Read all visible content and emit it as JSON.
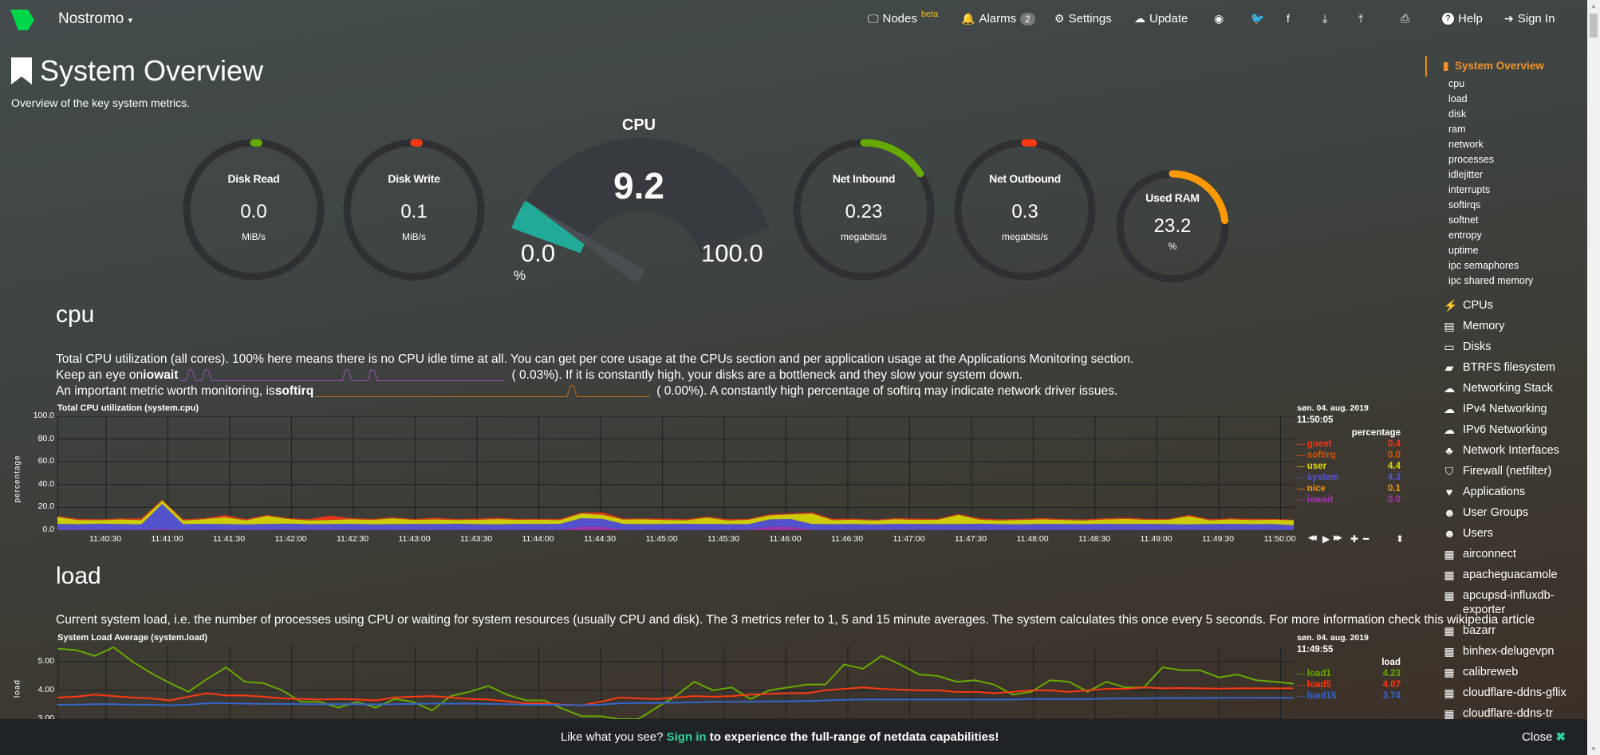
{
  "topbar": {
    "brand": "Nostromo",
    "nav": [
      {
        "icon": "monitor-icon",
        "label": "Nodes",
        "sup": "beta"
      },
      {
        "icon": "bell-icon",
        "label": "Alarms",
        "badge": "2"
      },
      {
        "icon": "gear-icon",
        "label": "Settings"
      },
      {
        "icon": "cloud-download-icon",
        "label": "Update"
      },
      {
        "icon": "github-icon"
      },
      {
        "icon": "twitter-icon"
      },
      {
        "icon": "facebook-icon"
      },
      {
        "icon": "download-icon"
      },
      {
        "icon": "upload-icon"
      },
      {
        "icon": "print-icon"
      },
      {
        "icon": "help-icon",
        "label": "Help"
      },
      {
        "icon": "sign-in-icon",
        "label": "Sign In"
      }
    ]
  },
  "page": {
    "title": "System Overview",
    "subtitle": "Overview of the key system metrics."
  },
  "gauges": [
    {
      "title": "Disk Read",
      "value": "0.0",
      "unit": "MiB/s",
      "fill": 0.01,
      "color": "#66aa00"
    },
    {
      "title": "Disk Write",
      "value": "0.1",
      "unit": "MiB/s",
      "fill": 0.01,
      "color": "#fe3912"
    },
    {
      "title": "Net Inbound",
      "value": "0.23",
      "unit": "megabits/s",
      "fill": 0.16,
      "color": "#66aa00"
    },
    {
      "title": "Net Outbound",
      "value": "0.3",
      "unit": "megabits/s",
      "fill": 0.02,
      "color": "#fe3912"
    },
    {
      "title": "Used RAM",
      "value": "23.2",
      "unit": "%",
      "fill": 0.232,
      "color": "#ff9900"
    }
  ],
  "cpu_gauge": {
    "title": "CPU",
    "value": "9.2",
    "min": "0.0",
    "max": "100.0",
    "unit": "%",
    "fraction": 0.092,
    "color": "#22aa99"
  },
  "cpu_section": {
    "heading": "cpu",
    "line1": "Total CPU utilization (all cores). 100% here means there is no CPU idle time at all. You can get per core usage at the CPUs section and per application usage at the Applications Monitoring section.",
    "line2_pre": "Keep an eye on ",
    "line2_bold": "iowait",
    "line2_val": "(       0.03%). If it is constantly high, your disks are a bottleneck and they slow your system down.",
    "line3_pre": "An important metric worth monitoring, is ",
    "line3_bold": "softirq",
    "line3_val": "(       0.00%). A constantly high percentage of softirq may indicate network driver issues."
  },
  "load_section": {
    "heading": "load",
    "line1": "Current system load, i.e. the number of processes using CPU or waiting for system resources (usually CPU and disk). The 3 metrics refer to 1, 5 and 15 minute averages. The system calculates this once every 5 seconds. For more information check this wikipedia article"
  },
  "chart_data": [
    {
      "type": "area",
      "title": "Total CPU utilization (system.cpu)",
      "ylabel": "percentage",
      "ylim": [
        0,
        100
      ],
      "yticks": [
        "100.0",
        "80.0",
        "60.0",
        "40.0",
        "20.0",
        "0.0"
      ],
      "xticks": [
        "11:40:30",
        "11:41:00",
        "11:41:30",
        "11:42:00",
        "11:42:30",
        "11:43:00",
        "11:43:30",
        "11:44:00",
        "11:44:30",
        "11:45:00",
        "11:45:30",
        "11:46:00",
        "11:46:30",
        "11:47:00",
        "11:47:30",
        "11:48:00",
        "11:48:30",
        "11:49:00",
        "11:49:30",
        "11:50:00"
      ],
      "date": "søn. 04. aug. 2019",
      "time": "11:50:05",
      "units": "percentage",
      "stacked": true,
      "grid": true,
      "series": [
        {
          "name": "iowait",
          "color": "#aa33bb",
          "value": "0.0",
          "values": [
            0.3,
            0.3,
            0.3,
            0.3,
            0.3,
            1,
            0.3,
            0.3,
            0.3,
            0.3,
            0.3,
            0.3,
            0.3,
            0.3,
            0.3,
            0.3,
            0.3,
            0.3,
            0.3,
            0.3,
            0.3,
            0.3,
            0.3,
            0.3,
            0.3,
            3,
            3,
            0.3,
            0.3,
            0.3,
            0.3,
            0.3,
            0.3,
            0.3,
            3,
            3,
            0.3,
            0.3,
            0.3,
            0.3,
            0.3,
            0.3,
            0.3,
            0.3,
            0.3,
            0.3,
            0.3,
            0.3,
            0.3,
            0.3,
            0.3,
            0.3,
            0.3,
            0.3,
            0.3,
            0.3,
            0.3,
            0.3,
            0.3,
            0.0
          ]
        },
        {
          "name": "system",
          "color": "#5555dd",
          "value": "4.3",
          "values": [
            5.2,
            5.0,
            5.4,
            5.1,
            4.9,
            22,
            5.0,
            5.3,
            5.1,
            4.8,
            5.2,
            5.5,
            5.0,
            5.1,
            5.3,
            4.9,
            5.0,
            5.2,
            5.1,
            5.4,
            5.0,
            4.9,
            5.2,
            5.1,
            5.3,
            7.5,
            7.0,
            5.2,
            5.0,
            5.1,
            5.3,
            5.2,
            5.0,
            5.1,
            6.5,
            6.8,
            5.2,
            5.0,
            5.1,
            4.9,
            5.3,
            5.2,
            5.0,
            5.1,
            5.4,
            5.0,
            4.9,
            5.2,
            5.1,
            5.0,
            5.3,
            5.1,
            5.2,
            5.0,
            4.9,
            5.1,
            5.2,
            5.0,
            5.1,
            4.3
          ]
        },
        {
          "name": "user",
          "color": "#dddd00",
          "value": "4.4",
          "values": [
            6,
            3.5,
            3.0,
            4.0,
            3.5,
            3.0,
            3.2,
            4.0,
            6,
            3.5,
            7.0,
            4.0,
            3.2,
            3.5,
            4.0,
            3.8,
            5.0,
            3.5,
            4.0,
            3.2,
            3.8,
            4.5,
            3.5,
            3.8,
            3.2,
            4.0,
            3.5,
            3.8,
            4.2,
            3.5,
            3.0,
            5.5,
            3.2,
            3.8,
            3.5,
            4.0,
            9,
            3.5,
            3.8,
            3.2,
            4.0,
            3.5,
            3.8,
            8,
            3.5,
            3.2,
            3.8,
            4.0,
            3.5,
            3.2,
            3.8,
            4.5,
            3.5,
            3.8,
            7,
            3.2,
            4.0,
            3.5,
            3.8,
            4.4
          ]
        },
        {
          "name": "nice",
          "color": "#ee9911",
          "value": "0.1",
          "values": [
            0.1,
            0.1,
            0.1,
            0.1,
            0.1,
            0.1,
            0.1,
            0.1,
            0.1,
            0.1,
            0.1,
            0.1,
            0.1,
            0.1,
            0.1,
            0.1,
            0.1,
            0.1,
            0.1,
            0.1,
            0.1,
            0.1,
            0.1,
            0.1,
            0.1,
            0.1,
            0.1,
            0.1,
            0.1,
            0.1,
            0.1,
            0.1,
            0.1,
            0.1,
            0.1,
            0.1,
            0.1,
            0.1,
            0.1,
            0.1,
            0.1,
            0.1,
            0.1,
            0.1,
            0.1,
            0.1,
            0.1,
            0.1,
            0.1,
            0.1,
            0.1,
            0.1,
            0.1,
            0.1,
            0.1,
            0.1,
            0.1,
            0.1,
            0.1,
            0.1
          ]
        },
        {
          "name": "softirq",
          "color": "#dd5500",
          "value": "0.0",
          "values": [
            0.2,
            0.2,
            0.2,
            0.2,
            0.2,
            0.2,
            0.2,
            0.2,
            0.2,
            0.2,
            0.2,
            0.2,
            0.2,
            0.2,
            0.2,
            0.2,
            0.2,
            0.2,
            0.2,
            0.2,
            0.2,
            0.2,
            0.2,
            0.2,
            0.2,
            0.2,
            0.2,
            0.2,
            0.2,
            0.2,
            0.2,
            0.2,
            0.2,
            0.2,
            0.2,
            0.2,
            0.2,
            0.2,
            0.2,
            0.2,
            0.2,
            0.2,
            0.2,
            0.2,
            0.2,
            0.2,
            0.2,
            0.2,
            0.2,
            0.2,
            0.2,
            0.2,
            0.2,
            0.2,
            0.2,
            0.2,
            0.2,
            0.2,
            0.2,
            0.0
          ]
        },
        {
          "name": "guest",
          "color": "#ff3311",
          "value": "0.4",
          "values": [
            0.6,
            0.8,
            0.5,
            0.6,
            1.2,
            0.5,
            0.7,
            0.6,
            1.5,
            0.8,
            0.6,
            0.5,
            0.9,
            3.5,
            0.7,
            0.6,
            0.8,
            0.5,
            1.2,
            0.6,
            0.7,
            0.9,
            0.6,
            0.5,
            0.8,
            0.7,
            1.8,
            0.6,
            0.5,
            0.9,
            0.7,
            0.6,
            0.8,
            0.5,
            0.7,
            0.6,
            0.8,
            0.9,
            0.6,
            0.5,
            0.7,
            0.8,
            0.6,
            0.5,
            0.9,
            0.7,
            0.6,
            0.8,
            0.5,
            0.6,
            0.7,
            0.8,
            0.6,
            0.5,
            0.9,
            0.7,
            0.6,
            0.8,
            0.5,
            0.4
          ]
        }
      ]
    },
    {
      "type": "line",
      "title": "System Load Average (system.load)",
      "ylabel": "load",
      "ylim": [
        2.0,
        5.55
      ],
      "yticks": [
        "5.00",
        "4.00",
        "3.00"
      ],
      "date": "søn. 04. aug. 2019",
      "time": "11:49:55",
      "units": "load",
      "grid": true,
      "series": [
        {
          "name": "load1",
          "color": "#66aa00",
          "value": "4.23",
          "values": [
            5.45,
            5.4,
            5.2,
            5.5,
            5.0,
            4.6,
            4.25,
            3.95,
            4.4,
            4.8,
            4.3,
            4.25,
            4.0,
            3.6,
            3.6,
            3.4,
            3.6,
            3.4,
            3.7,
            3.6,
            3.3,
            3.8,
            3.95,
            4.15,
            3.85,
            3.65,
            3.65,
            3.35,
            3.1,
            3.1,
            3.0,
            3.0,
            3.4,
            3.8,
            4.3,
            4.0,
            4.1,
            3.7,
            4.0,
            4.1,
            4.2,
            4.2,
            4.9,
            4.75,
            5.2,
            4.9,
            4.55,
            4.5,
            4.3,
            4.35,
            4.2,
            3.85,
            3.95,
            4.35,
            4.3,
            3.95,
            4.3,
            4.1,
            4.1,
            4.8,
            4.7,
            4.7,
            4.45,
            4.55,
            4.35,
            4.3,
            4.23
          ]
        },
        {
          "name": "load5",
          "color": "#fe3912",
          "value": "4.07",
          "values": [
            3.75,
            3.78,
            3.85,
            3.8,
            3.75,
            3.72,
            3.65,
            3.78,
            3.9,
            3.82,
            3.82,
            3.78,
            3.72,
            3.7,
            3.68,
            3.7,
            3.68,
            3.65,
            3.75,
            3.78,
            3.8,
            3.75,
            3.7,
            3.68,
            3.62,
            3.55,
            3.55,
            3.5,
            3.48,
            3.6,
            3.75,
            3.72,
            3.7,
            3.75,
            3.8,
            3.78,
            3.8,
            3.85,
            3.88,
            3.9,
            3.9,
            4.0,
            4.05,
            4.1,
            4.05,
            4.02,
            4.0,
            4.0,
            3.95,
            3.95,
            3.9,
            3.95,
            4.0,
            4.0,
            3.95,
            4.0,
            4.05,
            4.05,
            4.1,
            4.07,
            4.08,
            4.07,
            4.06,
            4.07,
            4.07,
            4.07,
            4.07
          ]
        },
        {
          "name": "load15",
          "color": "#3366cc",
          "value": "3.74",
          "values": [
            3.5,
            3.5,
            3.52,
            3.52,
            3.5,
            3.5,
            3.48,
            3.5,
            3.55,
            3.55,
            3.54,
            3.53,
            3.53,
            3.52,
            3.52,
            3.52,
            3.52,
            3.51,
            3.52,
            3.53,
            3.54,
            3.54,
            3.54,
            3.53,
            3.52,
            3.5,
            3.5,
            3.49,
            3.48,
            3.5,
            3.55,
            3.56,
            3.56,
            3.57,
            3.58,
            3.6,
            3.6,
            3.6,
            3.62,
            3.62,
            3.63,
            3.65,
            3.67,
            3.68,
            3.68,
            3.68,
            3.68,
            3.68,
            3.68,
            3.68,
            3.68,
            3.68,
            3.7,
            3.7,
            3.7,
            3.7,
            3.71,
            3.72,
            3.72,
            3.73,
            3.73,
            3.73,
            3.74,
            3.74,
            3.74,
            3.74,
            3.74
          ]
        }
      ]
    }
  ],
  "sidebar": {
    "active": "System Overview",
    "sub": [
      "cpu",
      "load",
      "disk",
      "ram",
      "network",
      "processes",
      "idlejitter",
      "interrupts",
      "softirqs",
      "softnet",
      "entropy",
      "uptime",
      "ipc semaphores",
      "ipc shared memory"
    ],
    "items": [
      {
        "icon": "bolt-icon",
        "g": "⚡",
        "label": "CPUs"
      },
      {
        "icon": "memory-icon",
        "g": "▤",
        "label": "Memory"
      },
      {
        "icon": "hdd-icon",
        "g": "▭",
        "label": "Disks"
      },
      {
        "icon": "folder-icon",
        "g": "▰",
        "label": "BTRFS filesystem"
      },
      {
        "icon": "cloud-icon",
        "g": "☁",
        "label": "Networking Stack"
      },
      {
        "icon": "cloud-icon",
        "g": "☁",
        "label": "IPv4 Networking"
      },
      {
        "icon": "cloud-icon",
        "g": "☁",
        "label": "IPv6 Networking"
      },
      {
        "icon": "sitemap-icon",
        "g": "♣",
        "label": "Network Interfaces"
      },
      {
        "icon": "shield-icon",
        "g": "⛉",
        "label": "Firewall (netfilter)"
      },
      {
        "icon": "heartbeat-icon",
        "g": "♥",
        "label": "Applications"
      },
      {
        "icon": "users-icon",
        "g": "☻",
        "label": "User Groups"
      },
      {
        "icon": "user-icon",
        "g": "☻",
        "label": "Users"
      },
      {
        "icon": "grid-icon",
        "g": "▦",
        "label": "airconnect"
      },
      {
        "icon": "grid-icon",
        "g": "▦",
        "label": "apacheguacamole"
      },
      {
        "icon": "grid-icon",
        "g": "▦",
        "label": "apcupsd-influxdb-exporter"
      },
      {
        "icon": "grid-icon",
        "g": "▦",
        "label": "bazarr"
      },
      {
        "icon": "grid-icon",
        "g": "▦",
        "label": "binhex-delugevpn"
      },
      {
        "icon": "grid-icon",
        "g": "▦",
        "label": "calibreweb"
      },
      {
        "icon": "grid-icon",
        "g": "▦",
        "label": "cloudflare-ddns-gflix"
      },
      {
        "icon": "grid-icon",
        "g": "▦",
        "label": "cloudflare-ddns-tr"
      }
    ]
  },
  "banner": {
    "pre": "Like what you see? ",
    "link": "Sign in",
    "post": " to experience the full-range of netdata capabilities!",
    "close": "Close"
  },
  "colors": {
    "accent": "#f0922c",
    "signin": "#2fd09a"
  }
}
